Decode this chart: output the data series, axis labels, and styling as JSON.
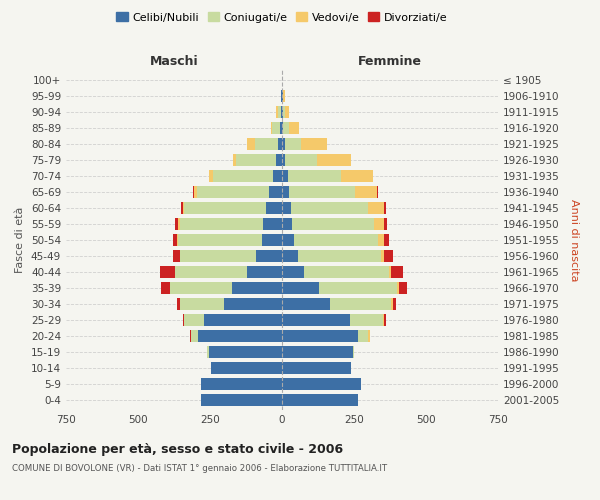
{
  "age_groups": [
    "0-4",
    "5-9",
    "10-14",
    "15-19",
    "20-24",
    "25-29",
    "30-34",
    "35-39",
    "40-44",
    "45-49",
    "50-54",
    "55-59",
    "60-64",
    "65-69",
    "70-74",
    "75-79",
    "80-84",
    "85-89",
    "90-94",
    "95-99",
    "100+"
  ],
  "birth_years": [
    "2001-2005",
    "1996-2000",
    "1991-1995",
    "1986-1990",
    "1981-1985",
    "1976-1980",
    "1971-1975",
    "1966-1970",
    "1961-1965",
    "1956-1960",
    "1951-1955",
    "1946-1950",
    "1941-1945",
    "1936-1940",
    "1931-1935",
    "1926-1930",
    "1921-1925",
    "1916-1920",
    "1911-1915",
    "1906-1910",
    "≤ 1905"
  ],
  "maschi": {
    "celibi": [
      280,
      280,
      245,
      255,
      290,
      270,
      200,
      175,
      120,
      90,
      70,
      65,
      55,
      45,
      30,
      20,
      15,
      8,
      5,
      2,
      0
    ],
    "coniugati": [
      0,
      0,
      0,
      5,
      25,
      70,
      155,
      215,
      250,
      265,
      290,
      290,
      285,
      250,
      210,
      140,
      80,
      25,
      10,
      3,
      0
    ],
    "vedovi": [
      0,
      0,
      0,
      0,
      0,
      0,
      0,
      0,
      0,
      0,
      5,
      5,
      5,
      10,
      15,
      10,
      25,
      5,
      5,
      0,
      0
    ],
    "divorziati": [
      0,
      0,
      0,
      0,
      5,
      5,
      10,
      30,
      55,
      25,
      15,
      10,
      5,
      5,
      0,
      0,
      0,
      0,
      0,
      0,
      0
    ]
  },
  "femmine": {
    "nubili": [
      265,
      275,
      240,
      245,
      265,
      235,
      165,
      130,
      75,
      55,
      40,
      35,
      30,
      25,
      20,
      10,
      10,
      5,
      3,
      2,
      0
    ],
    "coniugate": [
      0,
      0,
      0,
      5,
      35,
      115,
      215,
      270,
      295,
      290,
      295,
      285,
      270,
      230,
      185,
      110,
      55,
      20,
      8,
      3,
      0
    ],
    "vedove": [
      0,
      0,
      0,
      0,
      5,
      5,
      5,
      5,
      10,
      10,
      20,
      35,
      55,
      75,
      110,
      120,
      90,
      35,
      15,
      5,
      0
    ],
    "divorziate": [
      0,
      0,
      0,
      0,
      0,
      5,
      10,
      30,
      40,
      30,
      15,
      10,
      5,
      5,
      0,
      0,
      0,
      0,
      0,
      0,
      0
    ]
  },
  "colors": {
    "celibi": "#3d6fa5",
    "coniugati": "#c8dba0",
    "vedovi": "#f5c96a",
    "divorziati": "#cc2222"
  },
  "title": "Popolazione per età, sesso e stato civile - 2006",
  "subtitle": "COMUNE DI BOVOLONE (VR) - Dati ISTAT 1° gennaio 2006 - Elaborazione TUTTITALIA.IT",
  "xlabel_left": "Maschi",
  "xlabel_right": "Femmine",
  "ylabel_left": "Fasce di età",
  "ylabel_right": "Anni di nascita",
  "xlim": 750,
  "legend_labels": [
    "Celibi/Nubili",
    "Coniugati/e",
    "Vedovi/e",
    "Divorziati/e"
  ],
  "background_color": "#f5f5f0"
}
